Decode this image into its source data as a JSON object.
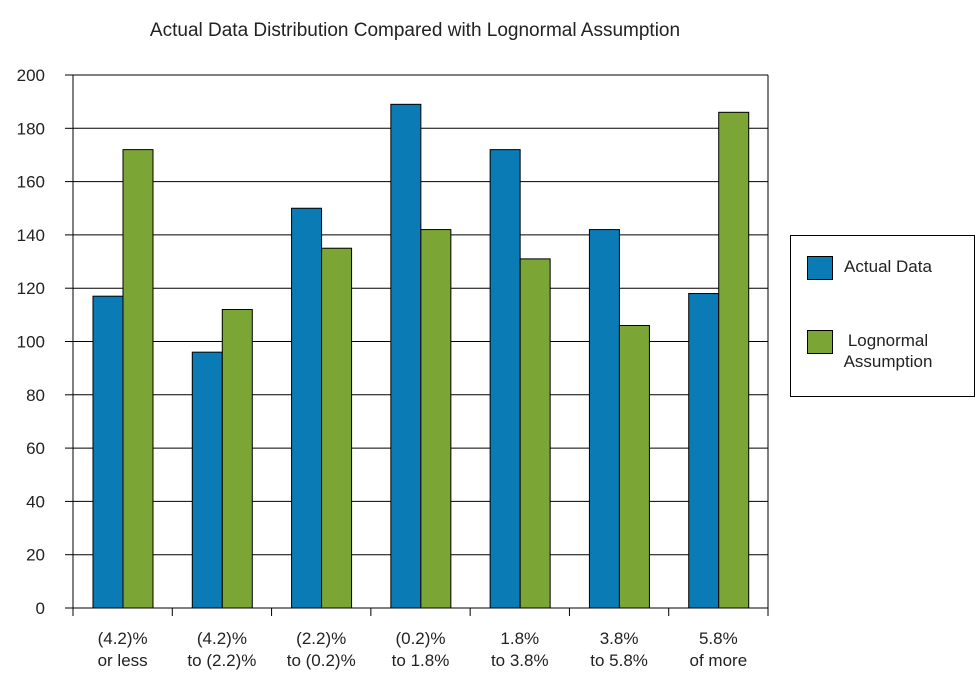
{
  "chart_data": {
    "type": "bar",
    "title": "Actual Data Distribution Compared with Lognormal Assumption",
    "categories": [
      [
        "(4.2)%",
        "or less"
      ],
      [
        "(4.2)%",
        "to (2.2)%"
      ],
      [
        "(2.2)%",
        "to (0.2)%"
      ],
      [
        "(0.2)%",
        "to 1.8%"
      ],
      [
        "1.8%",
        "to 3.8%"
      ],
      [
        "3.8%",
        "to 5.8%"
      ],
      [
        "5.8%",
        "of more"
      ]
    ],
    "series": [
      {
        "name": "Actual Data",
        "color": "#0a7bb5",
        "values": [
          117,
          96,
          150,
          189,
          172,
          142,
          118
        ]
      },
      {
        "name": "Lognormal Assumption",
        "color": "#7ba534",
        "values": [
          172,
          112,
          135,
          142,
          131,
          106,
          186
        ]
      }
    ],
    "ylim": [
      0,
      200
    ],
    "yticks": [
      0,
      20,
      40,
      60,
      80,
      100,
      120,
      140,
      160,
      180,
      200
    ],
    "grid": true,
    "legend": "right"
  }
}
